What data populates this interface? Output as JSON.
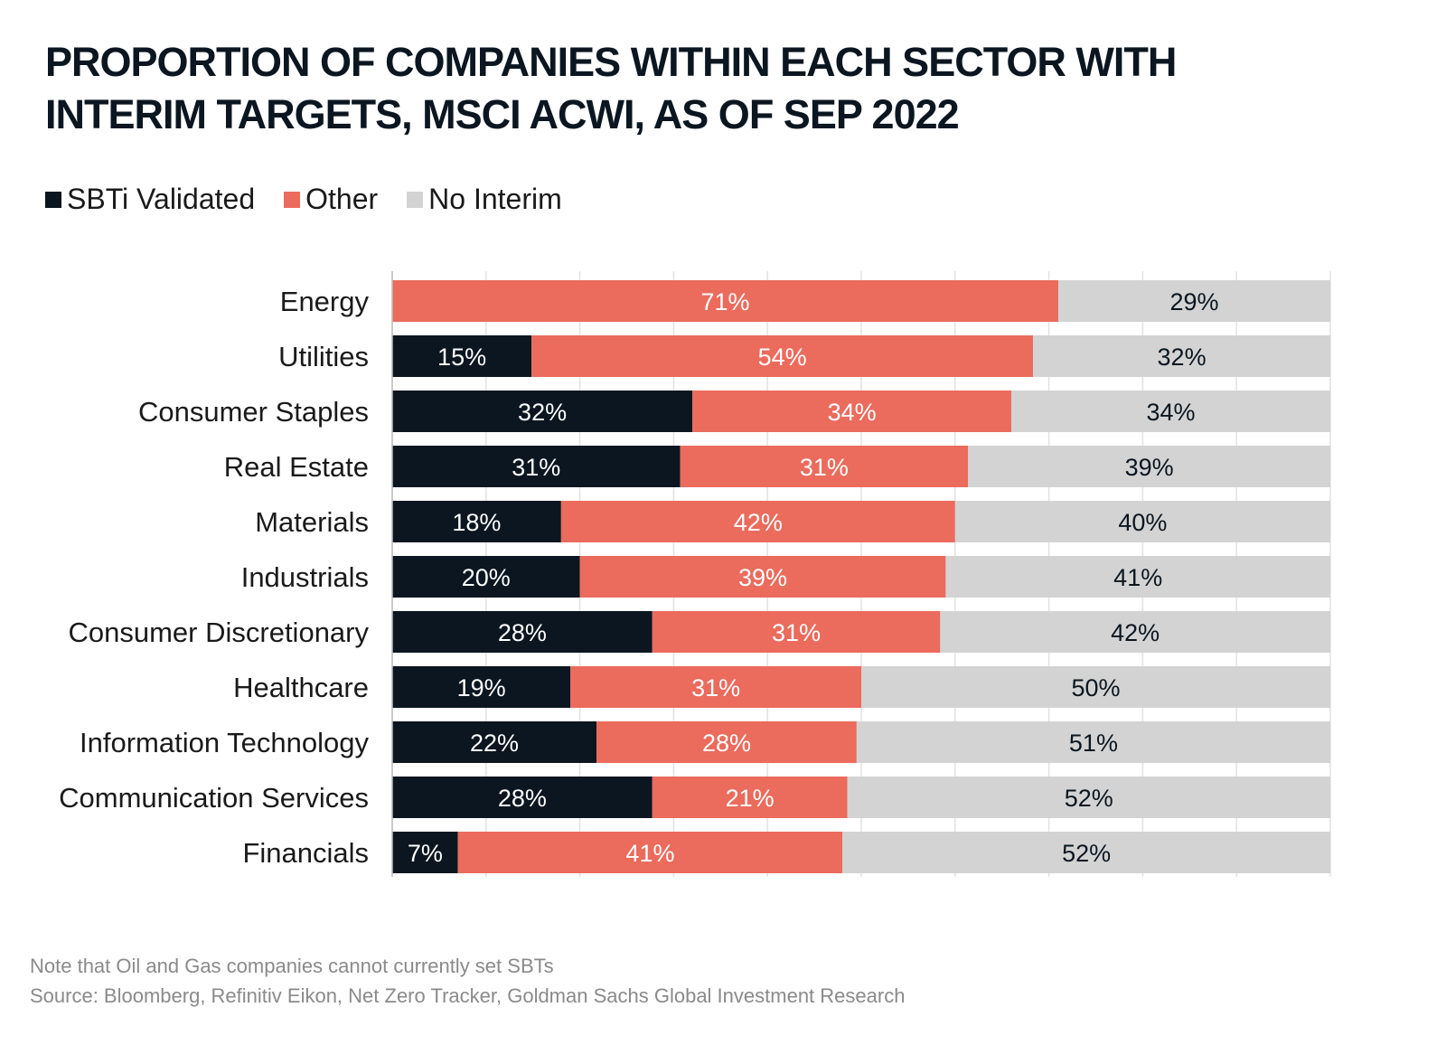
{
  "title": "PROPORTION OF COMPANIES WITHIN EACH SECTOR WITH INTERIM TARGETS, MSCI ACWI, AS OF SEP 2022",
  "legend": [
    {
      "label": "SBTi Validated",
      "color": "#0b1620"
    },
    {
      "label": "Other",
      "color": "#eb6b5c"
    },
    {
      "label": "No Interim",
      "color": "#d3d3d3"
    }
  ],
  "footnotes": {
    "note": "Note that Oil and Gas companies cannot currently set SBTs",
    "source": "Source: Bloomberg, Refinitiv Eikon, Net Zero Tracker, Goldman Sachs Global Investment Research"
  },
  "chart_data": {
    "type": "bar",
    "orientation": "horizontal",
    "stacked": true,
    "categories": [
      "Energy",
      "Utilities",
      "Consumer Staples",
      "Real Estate",
      "Materials",
      "Industrials",
      "Consumer Discretionary",
      "Healthcare",
      "Information Technology",
      "Communication Services",
      "Financials"
    ],
    "series": [
      {
        "name": "SBTi Validated",
        "color": "#0b1620",
        "label_color": "#ffffff",
        "values": [
          0,
          15,
          32,
          31,
          18,
          20,
          28,
          19,
          22,
          28,
          7
        ]
      },
      {
        "name": "Other",
        "color": "#eb6b5c",
        "label_color": "#ffffff",
        "values": [
          71,
          54,
          34,
          31,
          42,
          39,
          31,
          31,
          28,
          21,
          41
        ]
      },
      {
        "name": "No Interim",
        "color": "#d3d3d3",
        "label_color": "#0b1620",
        "values": [
          29,
          32,
          34,
          39,
          40,
          41,
          42,
          50,
          51,
          52,
          52
        ]
      }
    ],
    "value_labels": [
      [
        "",
        "71%",
        "29%"
      ],
      [
        "15%",
        "54%",
        "32%"
      ],
      [
        "32%",
        "34%",
        "34%"
      ],
      [
        "31%",
        "31%",
        "39%"
      ],
      [
        "18%",
        "42%",
        "40%"
      ],
      [
        "20%",
        "39%",
        "41%"
      ],
      [
        "28%",
        "31%",
        "42%"
      ],
      [
        "19%",
        "31%",
        "50%"
      ],
      [
        "22%",
        "28%",
        "51%"
      ],
      [
        "28%",
        "21%",
        "52%"
      ],
      [
        "7%",
        "41%",
        "52%"
      ]
    ],
    "xlim": [
      0,
      100
    ],
    "grid": true,
    "legend_position": "top-left"
  }
}
